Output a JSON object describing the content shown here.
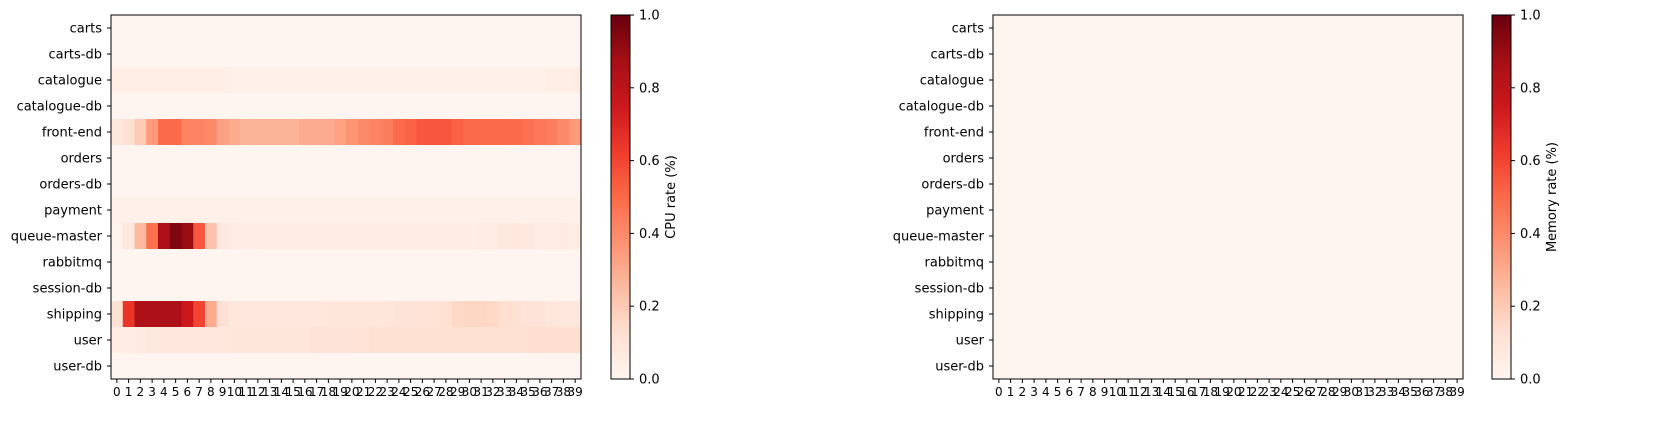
{
  "chart_data": [
    {
      "type": "heatmap",
      "rows": [
        "carts",
        "carts-db",
        "catalogue",
        "catalogue-db",
        "front-end",
        "orders",
        "orders-db",
        "payment",
        "queue-master",
        "rabbitmq",
        "session-db",
        "shipping",
        "user",
        "user-db"
      ],
      "x": [
        0,
        1,
        2,
        3,
        4,
        5,
        6,
        7,
        8,
        9,
        10,
        11,
        12,
        13,
        14,
        15,
        16,
        17,
        18,
        19,
        20,
        21,
        22,
        23,
        24,
        25,
        26,
        27,
        28,
        29,
        30,
        31,
        32,
        33,
        34,
        35,
        36,
        37,
        38,
        39
      ],
      "x_labels": [
        "0",
        "1",
        "2",
        "3",
        "4",
        "5",
        "6",
        "7",
        "8",
        "9",
        "10",
        "11",
        "12",
        "13",
        "14",
        "15",
        "16",
        "17",
        "18",
        "19",
        "20",
        "21",
        "22",
        "23",
        "24",
        "25",
        "26",
        "27",
        "28",
        "29",
        "30",
        "31",
        "32",
        "33",
        "34",
        "35",
        "36",
        "37",
        "38",
        "39"
      ],
      "values": [
        [
          0,
          0,
          0,
          0,
          0,
          0,
          0,
          0,
          0,
          0,
          0,
          0,
          0,
          0,
          0,
          0,
          0,
          0,
          0,
          0,
          0,
          0,
          0,
          0,
          0,
          0,
          0,
          0,
          0,
          0,
          0,
          0,
          0,
          0,
          0,
          0,
          0,
          0,
          0,
          0
        ],
        [
          0,
          0,
          0,
          0,
          0,
          0,
          0,
          0,
          0,
          0,
          0,
          0,
          0,
          0,
          0,
          0,
          0,
          0,
          0,
          0,
          0,
          0,
          0,
          0,
          0,
          0,
          0,
          0,
          0,
          0,
          0,
          0,
          0,
          0,
          0,
          0,
          0,
          0,
          0,
          0
        ],
        [
          0.04,
          0.04,
          0.04,
          0.04,
          0.04,
          0.04,
          0.04,
          0.04,
          0.04,
          0.04,
          0.03,
          0.03,
          0.03,
          0.03,
          0.03,
          0.03,
          0.03,
          0.03,
          0.03,
          0.03,
          0.03,
          0.03,
          0.03,
          0.03,
          0.03,
          0.03,
          0.03,
          0.03,
          0.03,
          0.03,
          0.03,
          0.03,
          0.03,
          0.03,
          0.03,
          0.03,
          0.03,
          0.04,
          0.04,
          0.05
        ],
        [
          0,
          0,
          0,
          0,
          0,
          0,
          0,
          0,
          0,
          0,
          0,
          0,
          0,
          0,
          0,
          0,
          0,
          0,
          0,
          0,
          0,
          0,
          0,
          0,
          0,
          0,
          0,
          0,
          0,
          0,
          0,
          0,
          0,
          0,
          0,
          0,
          0,
          0,
          0,
          0
        ],
        [
          0.08,
          0.12,
          0.2,
          0.35,
          0.5,
          0.5,
          0.42,
          0.42,
          0.4,
          0.33,
          0.3,
          0.27,
          0.27,
          0.27,
          0.27,
          0.27,
          0.3,
          0.3,
          0.3,
          0.33,
          0.37,
          0.4,
          0.42,
          0.44,
          0.5,
          0.52,
          0.55,
          0.55,
          0.55,
          0.52,
          0.5,
          0.5,
          0.5,
          0.5,
          0.5,
          0.48,
          0.46,
          0.44,
          0.4,
          0.35
        ],
        [
          0,
          0,
          0,
          0,
          0,
          0,
          0,
          0,
          0,
          0,
          0,
          0,
          0,
          0,
          0,
          0,
          0,
          0,
          0,
          0,
          0,
          0,
          0,
          0,
          0,
          0,
          0,
          0,
          0,
          0,
          0,
          0,
          0,
          0,
          0,
          0,
          0,
          0,
          0,
          0
        ],
        [
          0,
          0,
          0,
          0,
          0,
          0,
          0,
          0,
          0,
          0,
          0,
          0,
          0,
          0,
          0,
          0,
          0,
          0,
          0,
          0,
          0,
          0,
          0,
          0,
          0,
          0,
          0,
          0,
          0,
          0,
          0,
          0,
          0,
          0,
          0,
          0,
          0,
          0,
          0,
          0
        ],
        [
          0.03,
          0.03,
          0.03,
          0.03,
          0.03,
          0.03,
          0.03,
          0.03,
          0.03,
          0.03,
          0.03,
          0.03,
          0.03,
          0.03,
          0.03,
          0.03,
          0.03,
          0.03,
          0.03,
          0.03,
          0.03,
          0.03,
          0.03,
          0.03,
          0.03,
          0.03,
          0.03,
          0.03,
          0.03,
          0.03,
          0.03,
          0.03,
          0.03,
          0.03,
          0.03,
          0.03,
          0.03,
          0.03,
          0.03,
          0.03
        ],
        [
          0.02,
          0.08,
          0.25,
          0.48,
          0.85,
          0.95,
          0.9,
          0.55,
          0.22,
          0.08,
          0.06,
          0.05,
          0.05,
          0.05,
          0.05,
          0.05,
          0.05,
          0.05,
          0.05,
          0.05,
          0.05,
          0.05,
          0.05,
          0.05,
          0.05,
          0.05,
          0.05,
          0.05,
          0.05,
          0.05,
          0.05,
          0.06,
          0.06,
          0.07,
          0.08,
          0.07,
          0.06,
          0.06,
          0.06,
          0.05
        ],
        [
          0,
          0,
          0,
          0,
          0,
          0,
          0,
          0,
          0,
          0,
          0,
          0,
          0,
          0,
          0,
          0,
          0,
          0,
          0,
          0,
          0,
          0,
          0,
          0,
          0,
          0,
          0,
          0,
          0,
          0,
          0,
          0,
          0,
          0,
          0,
          0,
          0,
          0,
          0,
          0
        ],
        [
          0,
          0,
          0,
          0,
          0,
          0,
          0,
          0,
          0,
          0,
          0,
          0,
          0,
          0,
          0,
          0,
          0,
          0,
          0,
          0,
          0,
          0,
          0,
          0,
          0,
          0,
          0,
          0,
          0,
          0,
          0,
          0,
          0,
          0,
          0,
          0,
          0,
          0,
          0,
          0
        ],
        [
          0.12,
          0.65,
          0.85,
          0.85,
          0.85,
          0.85,
          0.75,
          0.6,
          0.3,
          0.12,
          0.08,
          0.08,
          0.08,
          0.08,
          0.08,
          0.08,
          0.08,
          0.08,
          0.09,
          0.09,
          0.09,
          0.09,
          0.09,
          0.09,
          0.1,
          0.1,
          0.11,
          0.11,
          0.12,
          0.15,
          0.16,
          0.16,
          0.15,
          0.13,
          0.12,
          0.1,
          0.1,
          0.09,
          0.08,
          0.08
        ],
        [
          0.05,
          0.05,
          0.06,
          0.07,
          0.08,
          0.08,
          0.08,
          0.08,
          0.08,
          0.08,
          0.09,
          0.09,
          0.09,
          0.09,
          0.09,
          0.09,
          0.09,
          0.1,
          0.1,
          0.1,
          0.1,
          0.11,
          0.12,
          0.12,
          0.12,
          0.12,
          0.12,
          0.12,
          0.12,
          0.12,
          0.12,
          0.12,
          0.12,
          0.12,
          0.12,
          0.13,
          0.13,
          0.13,
          0.13,
          0.13
        ],
        [
          0,
          0,
          0,
          0,
          0,
          0,
          0,
          0,
          0,
          0,
          0,
          0,
          0,
          0,
          0,
          0,
          0,
          0,
          0,
          0,
          0,
          0,
          0,
          0,
          0,
          0,
          0,
          0,
          0,
          0,
          0,
          0,
          0,
          0,
          0,
          0,
          0,
          0,
          0,
          0
        ]
      ],
      "colormap": "Reds",
      "colorbar": {
        "label": "CPU rate (%)",
        "range": [
          0,
          1
        ],
        "ticks": [
          "0.0",
          "0.2",
          "0.4",
          "0.6",
          "0.8",
          "1.0"
        ]
      }
    },
    {
      "type": "heatmap",
      "rows": [
        "carts",
        "carts-db",
        "catalogue",
        "catalogue-db",
        "front-end",
        "orders",
        "orders-db",
        "payment",
        "queue-master",
        "rabbitmq",
        "session-db",
        "shipping",
        "user",
        "user-db"
      ],
      "x": [
        0,
        1,
        2,
        3,
        4,
        5,
        6,
        7,
        8,
        9,
        10,
        11,
        12,
        13,
        14,
        15,
        16,
        17,
        18,
        19,
        20,
        21,
        22,
        23,
        24,
        25,
        26,
        27,
        28,
        29,
        30,
        31,
        32,
        33,
        34,
        35,
        36,
        37,
        38,
        39
      ],
      "x_labels": [
        "0",
        "1",
        "2",
        "3",
        "4",
        "5",
        "6",
        "7",
        "8",
        "9",
        "10",
        "11",
        "12",
        "13",
        "14",
        "15",
        "16",
        "17",
        "18",
        "19",
        "20",
        "21",
        "22",
        "23",
        "24",
        "25",
        "26",
        "27",
        "28",
        "29",
        "30",
        "31",
        "32",
        "33",
        "34",
        "35",
        "36",
        "37",
        "38",
        "39"
      ],
      "values": "all 0",
      "colormap": "Reds",
      "colorbar": {
        "label": "Memory rate (%)",
        "range": [
          0,
          1
        ],
        "ticks": [
          "0.0",
          "0.2",
          "0.4",
          "0.6",
          "0.8",
          "1.0"
        ]
      }
    }
  ]
}
